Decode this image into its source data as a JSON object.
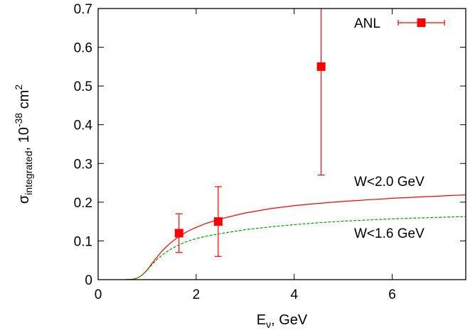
{
  "chart_data": {
    "type": "scatter",
    "xlabel": "E",
    "xlabel_sub": "ν",
    "xlabel_suffix": ", GeV",
    "ylabel": "σ",
    "ylabel_sub": "integrated",
    "ylabel_suffix": ", 10",
    "ylabel_sup": "-38",
    "ylabel_unit": " cm",
    "ylabel_unit_sup": "2",
    "xlim": [
      0,
      7.5
    ],
    "ylim": [
      0,
      0.7
    ],
    "xticks": [
      0,
      2,
      4,
      6
    ],
    "xtick_labels": [
      "0",
      "2",
      "4",
      "6"
    ],
    "yticks": [
      0,
      0.1,
      0.2,
      0.3,
      0.4,
      0.5,
      0.6,
      0.7
    ],
    "ytick_labels": [
      "0",
      "0.1",
      "0.2",
      "0.3",
      "0.4",
      "0.5",
      "0.6",
      "0.7"
    ],
    "grid": false,
    "legend_position": "top-right",
    "series": [
      {
        "name": "ANL",
        "kind": "points-with-errorbars",
        "color": "#ff0000",
        "marker": "square",
        "points": [
          {
            "x": 1.65,
            "y": 0.12,
            "ylow": 0.07,
            "yhigh": 0.17
          },
          {
            "x": 2.45,
            "y": 0.15,
            "ylow": 0.06,
            "yhigh": 0.24
          },
          {
            "x": 4.55,
            "y": 0.55,
            "ylow": 0.27,
            "yhigh": 0.7
          }
        ]
      }
    ],
    "curves": [
      {
        "label": "W<2.0 GeV",
        "color": "#ff0000",
        "style": "solid",
        "x": [
          0.55,
          0.7,
          0.8,
          0.9,
          1.0,
          1.1,
          1.2,
          1.3,
          1.4,
          1.5,
          1.6,
          1.8,
          2.0,
          2.2,
          2.5,
          3.0,
          3.5,
          4.0,
          4.5,
          5.0,
          5.5,
          6.0,
          6.5,
          7.0,
          7.5
        ],
        "y": [
          0,
          0.001,
          0.004,
          0.012,
          0.025,
          0.042,
          0.058,
          0.073,
          0.086,
          0.097,
          0.107,
          0.123,
          0.135,
          0.145,
          0.157,
          0.172,
          0.183,
          0.191,
          0.197,
          0.202,
          0.206,
          0.21,
          0.213,
          0.216,
          0.219
        ]
      },
      {
        "label": "W<1.6 GeV",
        "color": "#00a000",
        "style": "dashed",
        "x": [
          0.55,
          0.7,
          0.8,
          0.9,
          1.0,
          1.1,
          1.2,
          1.3,
          1.4,
          1.5,
          1.6,
          1.8,
          2.0,
          2.2,
          2.5,
          3.0,
          3.5,
          4.0,
          4.5,
          5.0,
          5.5,
          6.0,
          6.5,
          7.0,
          7.5
        ],
        "y": [
          0,
          0.001,
          0.004,
          0.012,
          0.024,
          0.039,
          0.052,
          0.063,
          0.072,
          0.08,
          0.087,
          0.098,
          0.106,
          0.112,
          0.119,
          0.129,
          0.136,
          0.142,
          0.147,
          0.151,
          0.154,
          0.157,
          0.159,
          0.161,
          0.163
        ]
      }
    ]
  }
}
